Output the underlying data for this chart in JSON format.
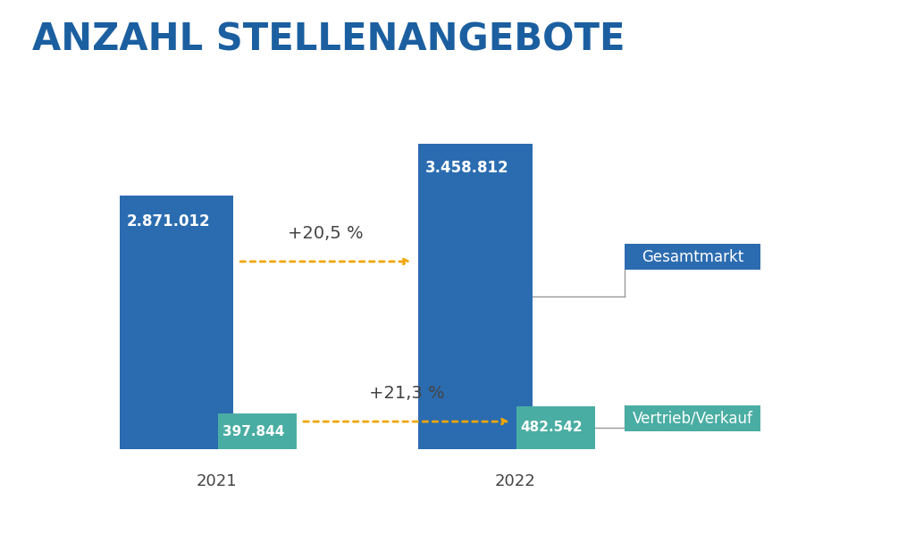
{
  "title": "ANZAHL STELLENANGEBOTE",
  "title_color": "#1B5FA0",
  "title_fontsize": 30,
  "background_color": "#ffffff",
  "val_g21": 2871012,
  "val_v21": 397844,
  "val_g22": 3458812,
  "val_v22": 482542,
  "label_g21": "2.871.012",
  "label_g22": "3.458.812",
  "label_v21": "397.844",
  "label_v22": "482.542",
  "gesamtmarkt_color": "#2B6CB0",
  "vertrieb_color": "#4AADA3",
  "label_gesamtmarkt": "Gesamtmarkt",
  "label_vertrieb": "Vertrieb/Verkauf",
  "year_2021": "2021",
  "year_2022": "2022",
  "arrow_color": "#F0A500",
  "pct_gesamtmarkt": "+20,5 %",
  "pct_vertrieb": "+21,3 %",
  "pct_color": "#444444",
  "connector_color": "#999999",
  "ylim_max": 4000000
}
